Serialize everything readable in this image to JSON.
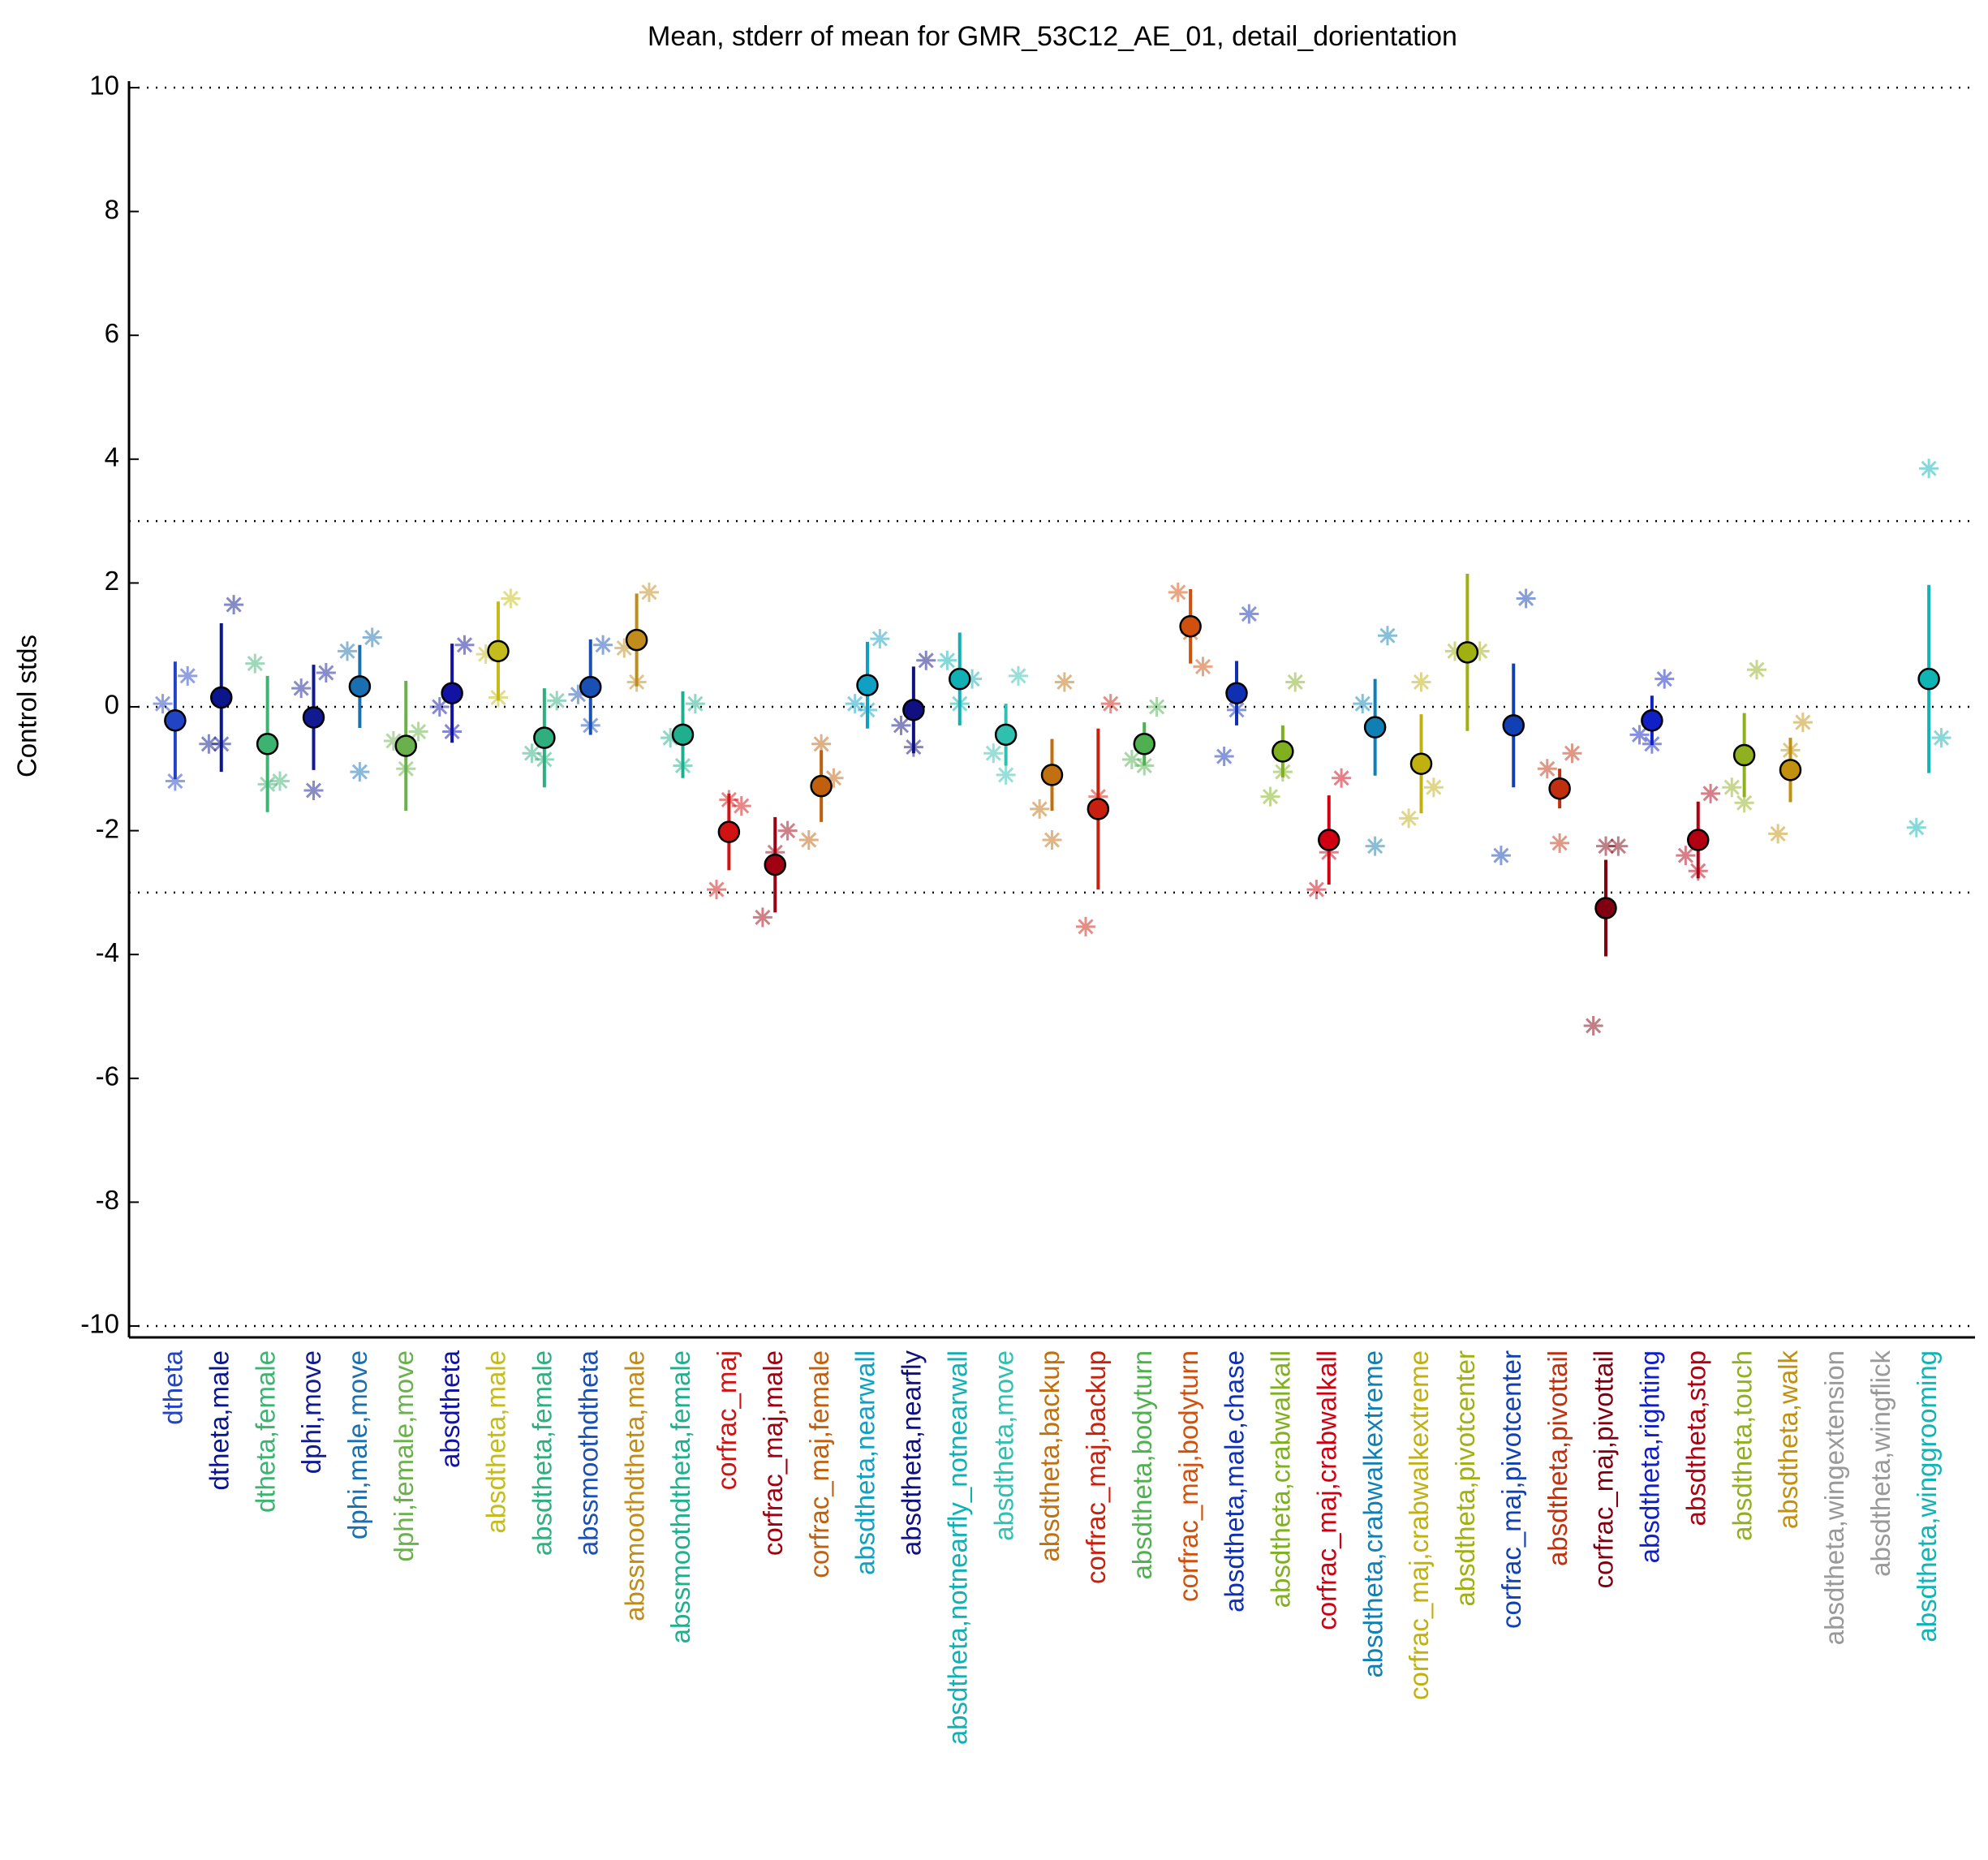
{
  "chart_data": {
    "type": "errorbar",
    "title": "Mean, stderr of mean for GMR_53C12_AE_01, detail_dorientation",
    "ylabel": "Control stds",
    "ylim": [
      -10,
      10
    ],
    "yticks": [
      -10,
      -8,
      -6,
      -4,
      -2,
      0,
      2,
      4,
      6,
      8,
      10
    ],
    "reference_lines": [
      10,
      3,
      0,
      -3,
      -10
    ],
    "categories": [
      "dtheta",
      "dtheta,male",
      "dtheta,female",
      "dphi,move",
      "dphi,male,move",
      "dphi,female,move",
      "absdtheta",
      "absdtheta,male",
      "absdtheta,female",
      "abssmoothdtheta",
      "abssmoothdtheta,male",
      "abssmoothdtheta,female",
      "corfrac_maj",
      "corfrac_maj,male",
      "corfrac_maj,female",
      "absdtheta,nearwall",
      "absdtheta,nearfly",
      "absdtheta,notnearfly_notnearwall",
      "absdtheta,move",
      "absdtheta,backup",
      "corfrac_maj,backup",
      "absdtheta,bodyturn",
      "corfrac_maj,bodyturn",
      "absdtheta,male,chase",
      "absdtheta,crabwalkall",
      "corfrac_maj,crabwalkall",
      "absdtheta,crabwalkextreme",
      "corfrac_maj,crabwalkextreme",
      "absdtheta,pivotcenter",
      "corfrac_maj,pivotcenter",
      "absdtheta,pivottail",
      "corfrac_maj,pivottail",
      "absdtheta,righting",
      "absdtheta,stop",
      "absdtheta,touch",
      "absdtheta,walk",
      "absdtheta,wingextension",
      "absdtheta,wingflick",
      "absdtheta,winggrooming"
    ],
    "colors": [
      "#2244c4",
      "#0c168c",
      "#3cb371",
      "#121a92",
      "#1a6fb0",
      "#6ab04c",
      "#1212a4",
      "#c4bc1c",
      "#2fae80",
      "#1a50b4",
      "#c08c1c",
      "#1eb08e",
      "#d01212",
      "#a00012",
      "#c0600e",
      "#10a0c4",
      "#101080",
      "#10b0b4",
      "#30c0b0",
      "#c0700e",
      "#c8200e",
      "#4fb050",
      "#d0500e",
      "#1030b4",
      "#80b020",
      "#d00012",
      "#1080b4",
      "#c0b010",
      "#a0b010",
      "#1040b4",
      "#c0300e",
      "#800012",
      "#1020c4",
      "#b00012",
      "#90b020",
      "#c0900e",
      "#999999",
      "#999999",
      "#10b4b4"
    ],
    "values": [
      -0.22,
      0.15,
      -0.6,
      -0.17,
      0.33,
      -0.63,
      0.22,
      0.9,
      -0.5,
      0.32,
      1.08,
      -0.45,
      -2.02,
      -2.55,
      -1.28,
      0.35,
      -0.05,
      0.45,
      -0.45,
      -1.1,
      -1.65,
      -0.6,
      1.3,
      0.22,
      -0.72,
      -2.15,
      -0.33,
      -0.92,
      0.88,
      -0.3,
      -1.32,
      -3.25,
      -0.22,
      -2.15,
      -0.78,
      -1.02,
      null,
      null,
      0.45
    ],
    "errors": [
      0.95,
      1.2,
      1.1,
      0.85,
      0.67,
      1.05,
      0.8,
      0.8,
      0.8,
      0.77,
      0.75,
      0.7,
      0.62,
      0.77,
      0.58,
      0.7,
      0.7,
      0.75,
      0.5,
      0.58,
      1.3,
      0.35,
      0.6,
      0.52,
      0.42,
      0.72,
      0.78,
      0.8,
      1.27,
      1.0,
      0.32,
      0.78,
      0.4,
      0.62,
      0.68,
      0.52,
      null,
      null,
      1.52
    ],
    "sub_means": [
      [
        0.05,
        -1.2,
        0.5
      ],
      [
        -0.6,
        -0.6,
        1.65
      ],
      [
        0.7,
        -1.25,
        -1.2
      ],
      [
        0.3,
        -1.35,
        0.55
      ],
      [
        0.9,
        -1.05,
        1.12
      ],
      [
        -0.55,
        -1.0,
        -0.4
      ],
      [
        0.0,
        -0.4,
        1.0
      ],
      [
        0.85,
        0.15,
        1.75
      ],
      [
        -0.75,
        -0.85,
        0.1
      ],
      [
        0.2,
        -0.3,
        1.0
      ],
      [
        0.95,
        0.4,
        1.85
      ],
      [
        -0.5,
        -0.95,
        0.05
      ],
      [
        -2.95,
        -1.5,
        -1.6
      ],
      [
        -3.4,
        -2.35,
        -2.0
      ],
      [
        -2.15,
        -0.6,
        -1.15
      ],
      [
        0.05,
        -0.05,
        1.1
      ],
      [
        -0.3,
        -0.65,
        0.75
      ],
      [
        0.75,
        0.05,
        0.45
      ],
      [
        -0.75,
        -1.1,
        0.5
      ],
      [
        -1.65,
        -2.15,
        0.4
      ],
      [
        -3.55,
        -1.45,
        0.05
      ],
      [
        -0.85,
        -0.95,
        0.0
      ],
      [
        1.85,
        1.2,
        0.65
      ],
      [
        -0.8,
        -0.05,
        1.5
      ],
      [
        -1.45,
        -1.05,
        0.4
      ],
      [
        -2.95,
        -2.35,
        -1.15
      ],
      [
        0.05,
        -2.25,
        1.15
      ],
      [
        -1.8,
        0.4,
        -1.3
      ],
      [
        0.9,
        0.85,
        0.9
      ],
      [
        -2.4,
        1.75
      ],
      [
        -1.0,
        -2.2,
        -0.75
      ],
      [
        -5.15,
        -2.25,
        -2.25
      ],
      [
        -0.45,
        -0.6,
        0.45
      ],
      [
        -2.4,
        -2.65,
        -1.4
      ],
      [
        -1.3,
        -1.55,
        0.6
      ],
      [
        -2.05,
        -0.7,
        -0.25
      ],
      [],
      [],
      [
        -1.95,
        3.85,
        -0.5
      ]
    ]
  }
}
